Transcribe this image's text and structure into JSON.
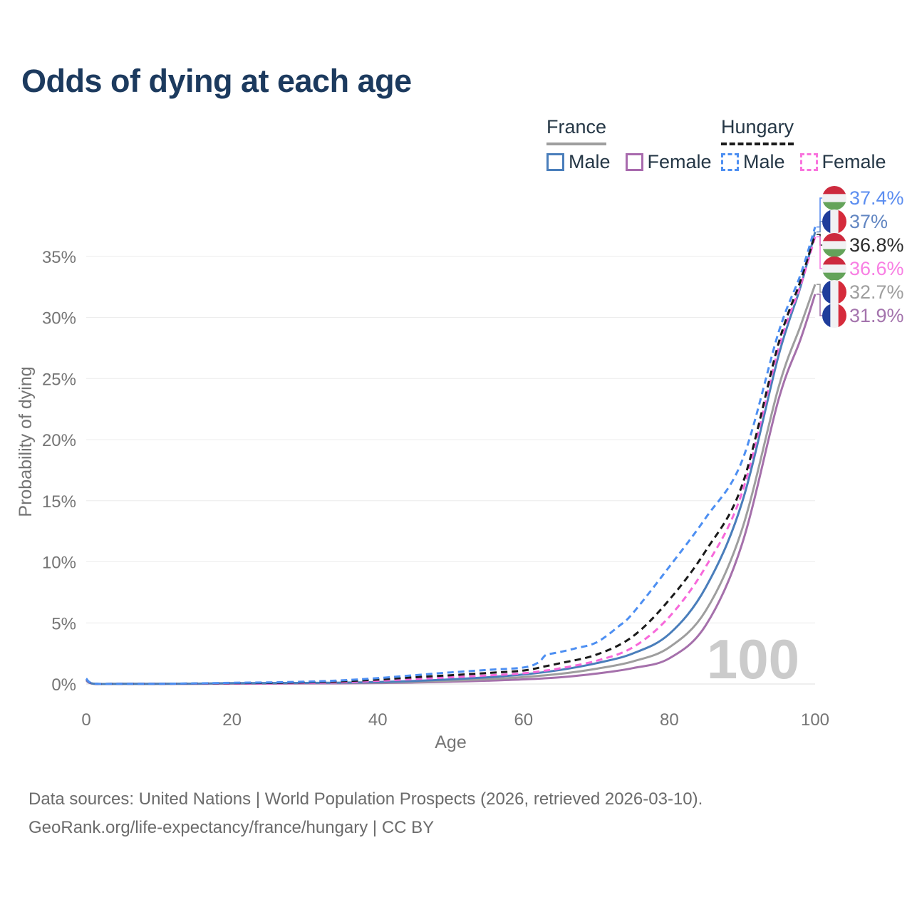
{
  "header": {
    "title": "Odds of dying at each age"
  },
  "legend": {
    "groups": [
      {
        "id": "france",
        "label": "France",
        "line_style": "solid",
        "line_color": "#9e9e9e",
        "items": [
          {
            "label": "Male",
            "color": "#4a7ebb"
          },
          {
            "label": "Female",
            "color": "#a86aad"
          }
        ]
      },
      {
        "id": "hungary",
        "label": "Hungary",
        "line_style": "dashed",
        "line_color": "#1a1a1a",
        "items": [
          {
            "label": "Male",
            "color": "#4d8ff2"
          },
          {
            "label": "Female",
            "color": "#f973dd"
          }
        ]
      }
    ]
  },
  "chart_data": {
    "type": "line",
    "title": "Odds of dying at each age",
    "xlabel": "Age",
    "ylabel": "Probability of dying",
    "x_axis": {
      "label": "Age",
      "ticks": [
        0,
        20,
        40,
        60,
        80,
        100
      ],
      "range": [
        0,
        100
      ]
    },
    "y_axis": {
      "label": "Probability of dying",
      "ticks": [
        0,
        5,
        10,
        15,
        20,
        25,
        30,
        35
      ],
      "tick_suffix": "%",
      "range": [
        0,
        37.5
      ]
    },
    "grid": "horizontal",
    "legend_position": "top-right",
    "watermark": "100",
    "flags": {
      "hungary": {
        "type": "horizontal",
        "colors": [
          "#cd2a3e",
          "#f1f1f3",
          "#64a35a"
        ]
      },
      "france": {
        "type": "vertical",
        "colors": [
          "#1f3d9b",
          "#f1f1f3",
          "#d52b3b"
        ]
      }
    },
    "series": [
      {
        "name": "France Female",
        "id": "france-female",
        "country": "France",
        "sex": "Female",
        "color": "#a570ab",
        "label_color": "#a474ad",
        "dash": "solid",
        "flag": "france",
        "end_label": "31.9%",
        "points": [
          [
            0,
            0.28
          ],
          [
            1,
            0.02
          ],
          [
            5,
            0.01
          ],
          [
            10,
            0.01
          ],
          [
            15,
            0.015
          ],
          [
            20,
            0.025
          ],
          [
            25,
            0.03
          ],
          [
            30,
            0.04
          ],
          [
            35,
            0.055
          ],
          [
            40,
            0.08
          ],
          [
            45,
            0.12
          ],
          [
            50,
            0.19
          ],
          [
            55,
            0.27
          ],
          [
            60,
            0.38
          ],
          [
            65,
            0.55
          ],
          [
            70,
            0.85
          ],
          [
            75,
            1.3
          ],
          [
            80,
            2.1
          ],
          [
            85,
            4.8
          ],
          [
            90,
            11.5
          ],
          [
            95,
            23.3
          ],
          [
            98,
            28.2
          ],
          [
            100,
            31.9
          ]
        ]
      },
      {
        "name": "France Both sexes",
        "id": "france-total",
        "country": "France",
        "sex": "Both",
        "color": "#9e9e9e",
        "label_color": "#9e9e9e",
        "dash": "solid",
        "flag": "france",
        "end_label": "32.7%",
        "points": [
          [
            0,
            0.31
          ],
          [
            1,
            0.025
          ],
          [
            5,
            0.01
          ],
          [
            10,
            0.01
          ],
          [
            15,
            0.02
          ],
          [
            20,
            0.05
          ],
          [
            25,
            0.06
          ],
          [
            30,
            0.07
          ],
          [
            35,
            0.085
          ],
          [
            40,
            0.12
          ],
          [
            45,
            0.18
          ],
          [
            50,
            0.28
          ],
          [
            55,
            0.4
          ],
          [
            60,
            0.57
          ],
          [
            65,
            0.83
          ],
          [
            70,
            1.25
          ],
          [
            75,
            1.85
          ],
          [
            80,
            3.0
          ],
          [
            85,
            6.0
          ],
          [
            90,
            12.7
          ],
          [
            95,
            24.3
          ],
          [
            98,
            29.3
          ],
          [
            100,
            32.7
          ]
        ]
      },
      {
        "name": "France Male",
        "id": "france-male",
        "country": "France",
        "sex": "Male",
        "color": "#4a7ebb",
        "label_color": "#6286c2",
        "dash": "solid",
        "flag": "france",
        "end_label": "37%",
        "points": [
          [
            0,
            0.35
          ],
          [
            1,
            0.03
          ],
          [
            5,
            0.01
          ],
          [
            10,
            0.01
          ],
          [
            15,
            0.03
          ],
          [
            20,
            0.07
          ],
          [
            25,
            0.08
          ],
          [
            30,
            0.09
          ],
          [
            35,
            0.11
          ],
          [
            40,
            0.16
          ],
          [
            45,
            0.25
          ],
          [
            50,
            0.38
          ],
          [
            55,
            0.55
          ],
          [
            60,
            0.78
          ],
          [
            65,
            1.15
          ],
          [
            70,
            1.7
          ],
          [
            75,
            2.5
          ],
          [
            80,
            4.1
          ],
          [
            85,
            7.9
          ],
          [
            90,
            14.9
          ],
          [
            95,
            26.9
          ],
          [
            98,
            32.5
          ],
          [
            100,
            37.0
          ]
        ]
      },
      {
        "name": "Hungary Female",
        "id": "hungary-female",
        "country": "Hungary",
        "sex": "Female",
        "color": "#f768da",
        "label_color": "#f87fe3",
        "dash": "dashed",
        "flag": "hungary",
        "end_label": "36.6%",
        "points": [
          [
            0,
            0.4
          ],
          [
            1,
            0.03
          ],
          [
            5,
            0.015
          ],
          [
            10,
            0.015
          ],
          [
            15,
            0.03
          ],
          [
            20,
            0.04
          ],
          [
            25,
            0.055
          ],
          [
            30,
            0.085
          ],
          [
            35,
            0.14
          ],
          [
            40,
            0.26
          ],
          [
            45,
            0.4
          ],
          [
            50,
            0.55
          ],
          [
            55,
            0.7
          ],
          [
            60,
            0.88
          ],
          [
            63,
            1.1
          ],
          [
            65,
            1.28
          ],
          [
            70,
            1.9
          ],
          [
            75,
            3.0
          ],
          [
            80,
            5.5
          ],
          [
            85,
            9.6
          ],
          [
            90,
            15.7
          ],
          [
            95,
            27.5
          ],
          [
            98,
            32.6
          ],
          [
            100,
            36.6
          ]
        ]
      },
      {
        "name": "Hungary Both sexes",
        "id": "hungary-total",
        "country": "Hungary",
        "sex": "Both",
        "color": "#1a1a1a",
        "label_color": "#2b2b2b",
        "dash": "dashed",
        "flag": "hungary",
        "end_label": "36.8%",
        "points": [
          [
            0,
            0.42
          ],
          [
            1,
            0.035
          ],
          [
            5,
            0.02
          ],
          [
            10,
            0.02
          ],
          [
            15,
            0.04
          ],
          [
            20,
            0.07
          ],
          [
            25,
            0.09
          ],
          [
            30,
            0.13
          ],
          [
            35,
            0.22
          ],
          [
            40,
            0.36
          ],
          [
            45,
            0.55
          ],
          [
            50,
            0.72
          ],
          [
            55,
            0.9
          ],
          [
            60,
            1.1
          ],
          [
            63,
            1.45
          ],
          [
            65,
            1.7
          ],
          [
            70,
            2.4
          ],
          [
            75,
            3.9
          ],
          [
            80,
            6.9
          ],
          [
            85,
            10.9
          ],
          [
            90,
            16.3
          ],
          [
            95,
            27.9
          ],
          [
            98,
            33.0
          ],
          [
            100,
            36.8
          ]
        ]
      },
      {
        "name": "Hungary Male",
        "id": "hungary-male",
        "country": "Hungary",
        "sex": "Male",
        "color": "#4d8ff2",
        "label_color": "#5b8df0",
        "dash": "dashed",
        "flag": "hungary",
        "end_label": "37.4%",
        "points": [
          [
            0,
            0.45
          ],
          [
            1,
            0.04
          ],
          [
            5,
            0.02
          ],
          [
            10,
            0.02
          ],
          [
            15,
            0.05
          ],
          [
            20,
            0.1
          ],
          [
            25,
            0.13
          ],
          [
            30,
            0.19
          ],
          [
            35,
            0.3
          ],
          [
            40,
            0.48
          ],
          [
            45,
            0.72
          ],
          [
            50,
            0.95
          ],
          [
            55,
            1.15
          ],
          [
            60,
            1.35
          ],
          [
            62,
            1.75
          ],
          [
            63,
            2.35
          ],
          [
            64,
            2.5
          ],
          [
            65,
            2.62
          ],
          [
            67,
            2.9
          ],
          [
            70,
            3.4
          ],
          [
            73,
            4.7
          ],
          [
            75,
            5.8
          ],
          [
            80,
            9.6
          ],
          [
            85,
            13.6
          ],
          [
            90,
            18.3
          ],
          [
            95,
            28.8
          ],
          [
            98,
            33.5
          ],
          [
            100,
            37.4
          ]
        ]
      }
    ]
  },
  "footer": {
    "line1": "Data sources: United Nations | World Population Prospects (2026, retrieved 2026-03-10).",
    "line2": "GeoRank.org/life-expectancy/france/hungary | CC BY"
  }
}
